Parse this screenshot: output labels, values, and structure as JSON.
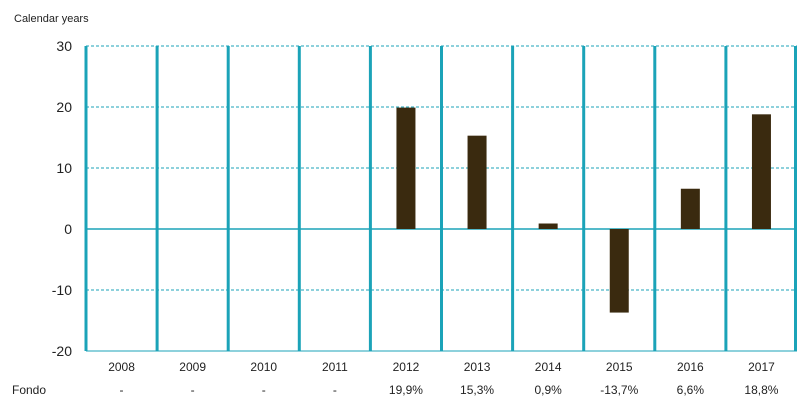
{
  "chart_data": {
    "type": "bar",
    "ylabel": "Calendar years",
    "categories": [
      "2008",
      "2009",
      "2010",
      "2011",
      "2012",
      "2013",
      "2014",
      "2015",
      "2016",
      "2017"
    ],
    "series": [
      {
        "name": "Fondo",
        "values": [
          null,
          null,
          null,
          null,
          19.9,
          15.3,
          0.9,
          -13.7,
          6.6,
          18.8
        ],
        "labels": [
          "-",
          "-",
          "-",
          "-",
          "19,9%",
          "15,3%",
          "0,9%",
          "-13,7%",
          "6,6%",
          "18,8%"
        ]
      }
    ],
    "yticks": [
      "30",
      "20",
      "10",
      "0",
      "-10",
      "-20"
    ],
    "ylim": [
      -20,
      30
    ],
    "grid": true,
    "colors": {
      "bar": "#3a2a0f",
      "grid": "#1ba3b8",
      "separator": "#1ba3b8",
      "zero_line": "#1ba3b8",
      "axis": "#1ba3b8"
    }
  }
}
